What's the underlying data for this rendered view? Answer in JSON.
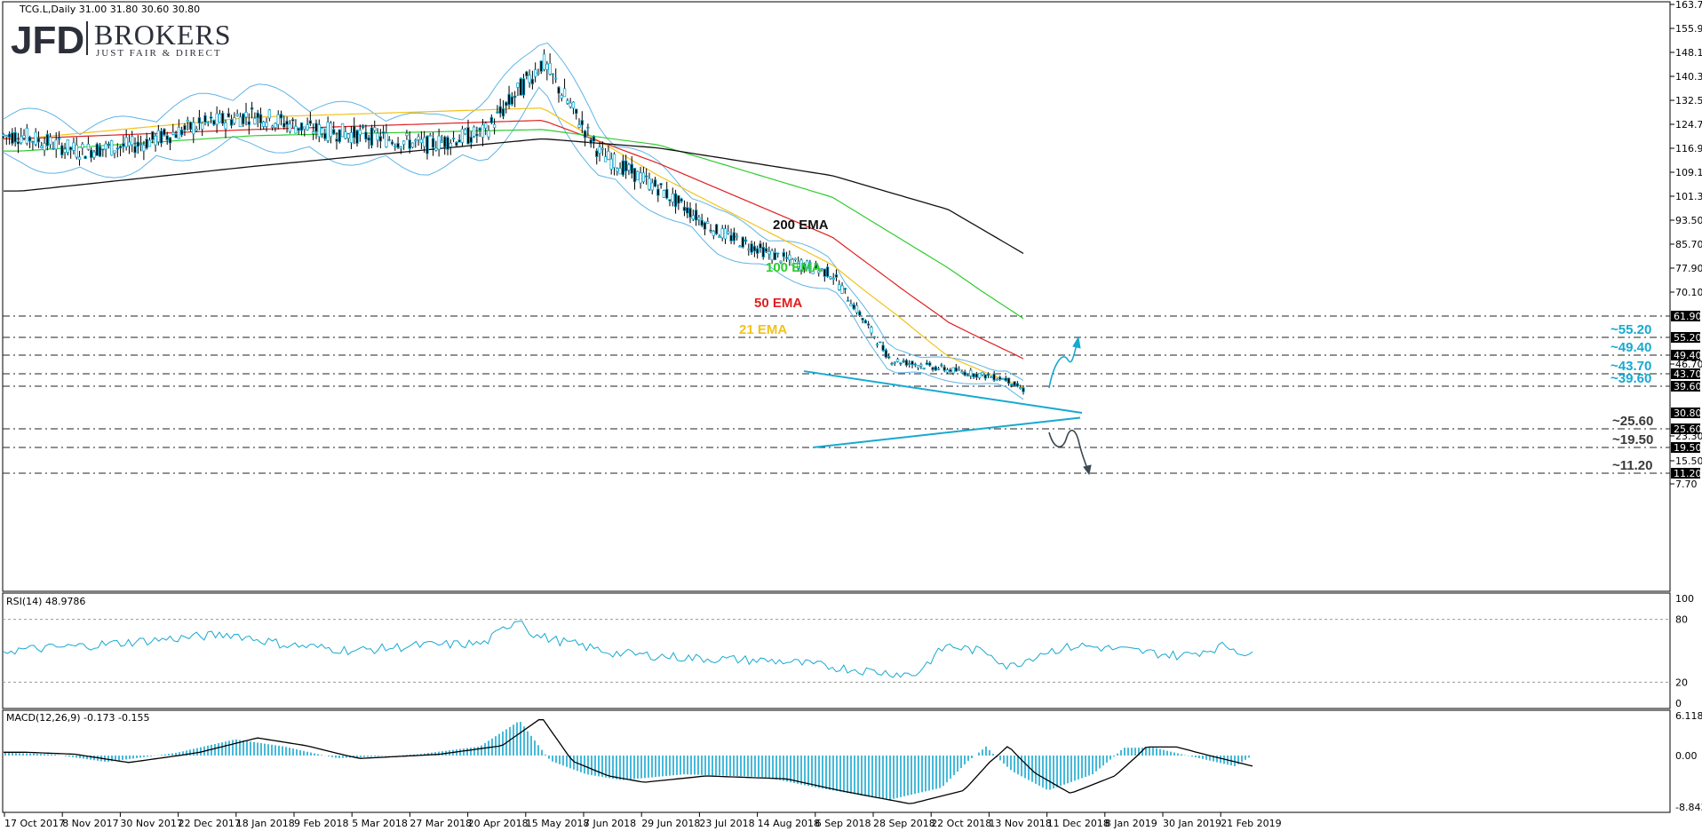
{
  "header": {
    "symbol_line": "TCG.L,Daily  31.00 31.80 30.60 30.80"
  },
  "logo": {
    "jfd": "JFD",
    "brokers": "BROKERS",
    "tagline": "JUST FAIR & DIRECT"
  },
  "colors": {
    "candle": "#17a9d0",
    "ema21": "#f2c21b",
    "ema50": "#e02020",
    "ema100": "#2ecc2e",
    "ema200": "#111111",
    "bollinger": "#5fb4e6",
    "trendline": "#17a9d0",
    "level_label": "#17a9d0",
    "level_label_lower": "#3a3a3a",
    "indicator_line": "#17a9d0",
    "macd_hist": "#17a9d0",
    "macd_signal": "#000000"
  },
  "chart_data": {
    "type": "line",
    "title": "TCG.L,Daily",
    "price_axis_ticks": [
      "163.70",
      "155.90",
      "148.10",
      "140.30",
      "132.50",
      "124.70",
      "116.90",
      "109.10",
      "101.30",
      "93.50",
      "85.70",
      "77.90",
      "70.10",
      "46.70",
      "23.30",
      "15.50",
      "7.70"
    ],
    "date_axis_ticks": [
      "17 Oct 2017",
      "8 Nov 2017",
      "30 Nov 2017",
      "22 Dec 2017",
      "18 Jan 2018",
      "9 Feb 2018",
      "5 Mar 2018",
      "27 Mar 2018",
      "20 Apr 2018",
      "15 May 2018",
      "7 Jun 2018",
      "29 Jun 2018",
      "23 Jul 2018",
      "14 Aug 2018",
      "6 Sep 2018",
      "28 Sep 2018",
      "22 Oct 2018",
      "13 Nov 2018",
      "11 Dec 2018",
      "8 Jan 2019",
      "30 Jan 2019",
      "21 Feb 2019"
    ],
    "ylim": [
      7.7,
      163.7
    ],
    "price_path": [
      [
        "17 Oct 2017",
        121
      ],
      [
        "8 Nov 2017",
        116
      ],
      [
        "30 Nov 2017",
        118
      ],
      [
        "22 Dec 2017",
        124
      ],
      [
        "18 Jan 2018",
        128
      ],
      [
        "9 Feb 2018",
        123
      ],
      [
        "5 Mar 2018",
        121
      ],
      [
        "27 Mar 2018",
        118
      ],
      [
        "20 Apr 2018",
        122
      ],
      [
        "15 May 2018",
        145
      ],
      [
        "7 Jun 2018",
        115
      ],
      [
        "29 Jun 2018",
        104
      ],
      [
        "23 Jul 2018",
        90
      ],
      [
        "14 Aug 2018",
        82
      ],
      [
        "6 Sep 2018",
        76
      ],
      [
        "28 Sep 2018",
        48
      ],
      [
        "22 Oct 2018",
        45
      ],
      [
        "13 Nov 2018",
        42
      ],
      [
        "11 Dec 2018",
        30
      ],
      [
        "8 Jan 2019",
        37
      ],
      [
        "30 Jan 2019",
        33
      ],
      [
        "21 Feb 2019",
        31
      ]
    ],
    "last_price": 30.8,
    "series": [
      {
        "name": "21 EMA",
        "values": [
          [
            "17 Oct 2017",
            120
          ],
          [
            "18 Jan 2018",
            127
          ],
          [
            "15 May 2018",
            130
          ],
          [
            "29 Jun 2018",
            108
          ],
          [
            "6 Sep 2018",
            79
          ],
          [
            "22 Oct 2018",
            49
          ],
          [
            "11 Dec 2018",
            34
          ],
          [
            "21 Feb 2019",
            32
          ]
        ]
      },
      {
        "name": "50 EMA",
        "values": [
          [
            "17 Oct 2017",
            120
          ],
          [
            "18 Jan 2018",
            123
          ],
          [
            "15 May 2018",
            126
          ],
          [
            "29 Jun 2018",
            112
          ],
          [
            "6 Sep 2018",
            88
          ],
          [
            "22 Oct 2018",
            60
          ],
          [
            "11 Dec 2018",
            42
          ],
          [
            "21 Feb 2019",
            35
          ]
        ]
      },
      {
        "name": "100 EMA",
        "values": [
          [
            "17 Oct 2017",
            116
          ],
          [
            "18 Jan 2018",
            121
          ],
          [
            "15 May 2018",
            123
          ],
          [
            "29 Jun 2018",
            118
          ],
          [
            "6 Sep 2018",
            101
          ],
          [
            "22 Oct 2018",
            78
          ],
          [
            "11 Dec 2018",
            52
          ],
          [
            "21 Feb 2019",
            40
          ]
        ]
      },
      {
        "name": "200 EMA",
        "values": [
          [
            "17 Oct 2017",
            103
          ],
          [
            "18 Jan 2018",
            111
          ],
          [
            "15 May 2018",
            120
          ],
          [
            "29 Jun 2018",
            117
          ],
          [
            "6 Sep 2018",
            108
          ],
          [
            "22 Oct 2018",
            97
          ],
          [
            "11 Dec 2018",
            75
          ],
          [
            "21 Feb 2019",
            55
          ]
        ]
      }
    ],
    "levels": [
      {
        "value": 61.9,
        "tag": "61.90",
        "label": ""
      },
      {
        "value": 55.2,
        "tag": "55.20",
        "label": "~55.20"
      },
      {
        "value": 49.4,
        "tag": "49.40",
        "label": "~49.40"
      },
      {
        "value": 43.7,
        "tag": "43.70",
        "label": "~43.70"
      },
      {
        "value": 39.6,
        "tag": "39.60",
        "label": "~39.60"
      },
      {
        "value": 25.6,
        "tag": "25.60",
        "label": "~25.60"
      },
      {
        "value": 19.5,
        "tag": "19.50",
        "label": "~19.50"
      },
      {
        "value": 11.2,
        "tag": "11.20",
        "label": "~11.20"
      }
    ],
    "current_price_tag": "30.80",
    "rsi": {
      "header": "RSI(14) 48.9786",
      "ticks": [
        "100",
        "80",
        "20",
        "0"
      ],
      "ylim": [
        0,
        100
      ],
      "levels": [
        80,
        20
      ]
    },
    "macd": {
      "header": "MACD(12,26,9) -0.173 -0.155",
      "ticks": [
        "6.118",
        "0.00",
        "-8.843"
      ],
      "ylim": [
        -8.843,
        6.118
      ]
    }
  }
}
